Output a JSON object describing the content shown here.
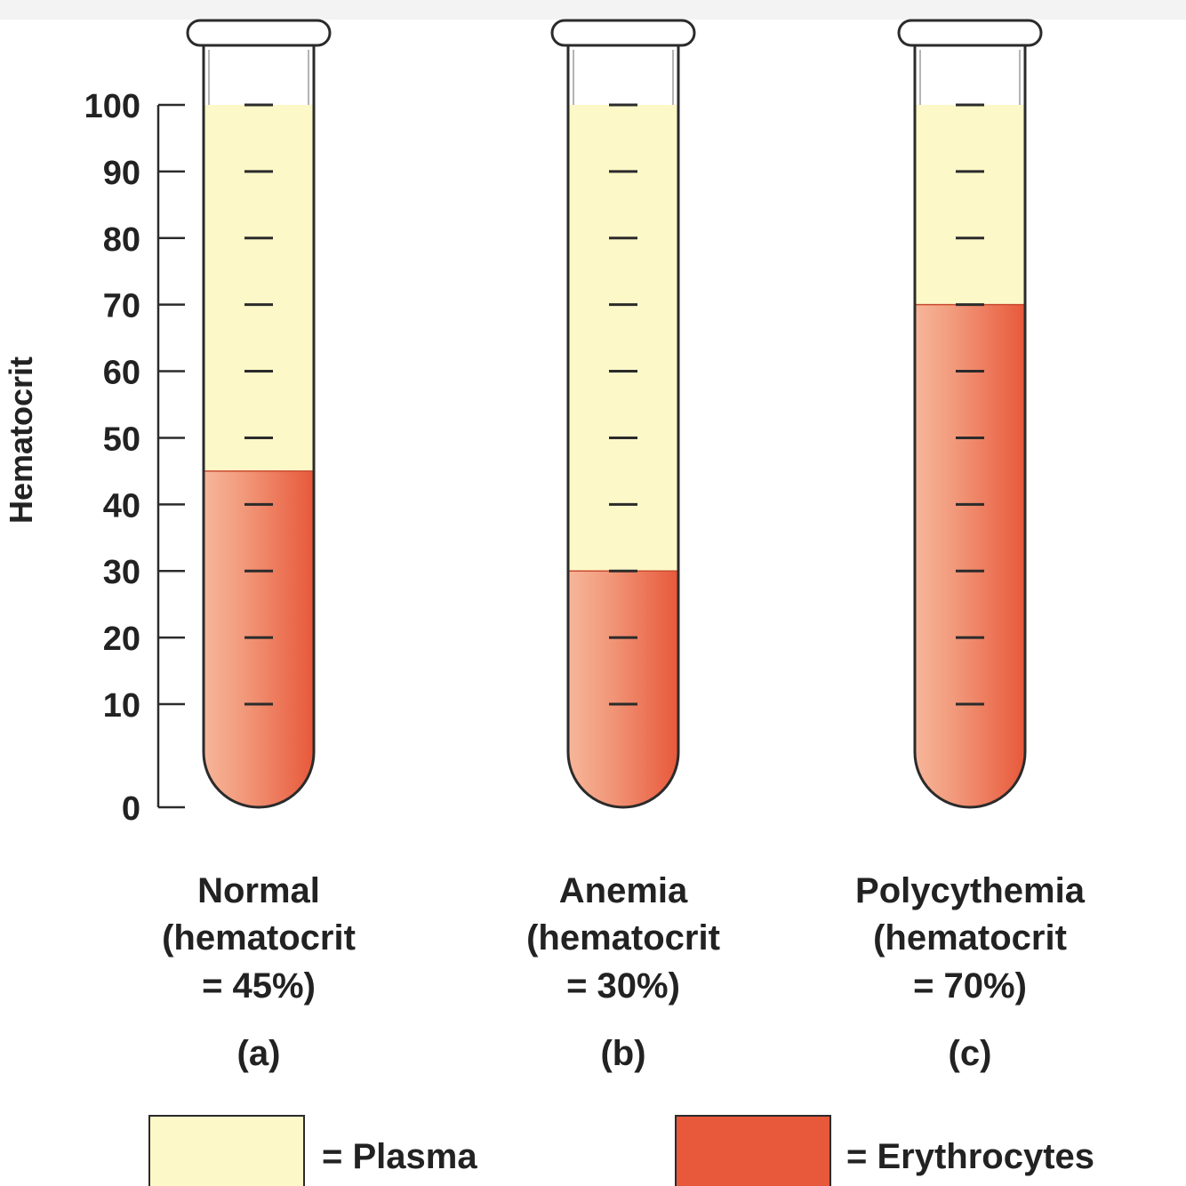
{
  "axis": {
    "label": "Hematocrit",
    "min": 0,
    "max": 100,
    "ticks": [
      "0",
      "10",
      "20",
      "30",
      "40",
      "50",
      "60",
      "70",
      "80",
      "90",
      "100"
    ]
  },
  "colors": {
    "plasma": "#fdf8c8",
    "erythrocytes_light": "#f7b69a",
    "erythrocytes": "#e8583a",
    "outline": "#2b2b2b"
  },
  "tubes": [
    {
      "id": "a",
      "lines": [
        "Normal",
        "(hematocrit",
        "= 45%)"
      ],
      "letter": "(a)",
      "hematocrit": 45
    },
    {
      "id": "b",
      "lines": [
        "Anemia",
        "(hematocrit",
        "= 30%)"
      ],
      "letter": "(b)",
      "hematocrit": 30
    },
    {
      "id": "c",
      "lines": [
        "Polycythemia",
        "(hematocrit",
        "= 70%)"
      ],
      "letter": "(c)",
      "hematocrit": 70
    }
  ],
  "legend": {
    "plasma_label": "= Plasma",
    "erythrocytes_label": "= Erythrocytes"
  }
}
